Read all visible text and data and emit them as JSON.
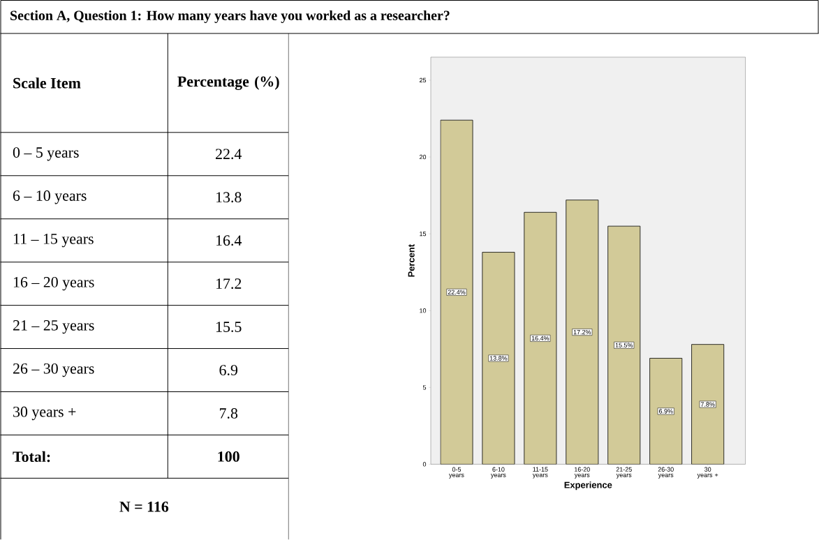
{
  "chart_data": {
    "type": "bar",
    "title": "Section A, Question 1: How many years have you worked as a researcher?",
    "xlabel": "Experience",
    "ylabel": "Percent",
    "categories": [
      "0-5 years",
      "6-10 years",
      "11-15 years",
      "16-20 years",
      "21-25 years",
      "26-30 years",
      "30 years +"
    ],
    "values": [
      22.4,
      13.8,
      16.4,
      17.2,
      15.5,
      6.9,
      7.8
    ],
    "value_labels": [
      "22.4%",
      "13.8%",
      "16.4%",
      "17.2%",
      "15.5%",
      "6.9%",
      "7.8%"
    ],
    "color": "#d2ca98",
    "ylim": [
      0,
      26.5
    ],
    "yticks": [
      0,
      5,
      10,
      15,
      20,
      25
    ],
    "annotations": [
      "Scale Item",
      "Percentage (%)",
      "0 – 5 years",
      "22.4",
      "6 – 10 years",
      "13.8",
      "11 – 15 years",
      "16.4",
      "16 – 20 years",
      "17.2",
      "21 – 25 years",
      "15.5",
      "26 – 30 years",
      "6.9",
      "30 years +",
      "7.8",
      "Total:",
      "100",
      "N = 116"
    ]
  }
}
